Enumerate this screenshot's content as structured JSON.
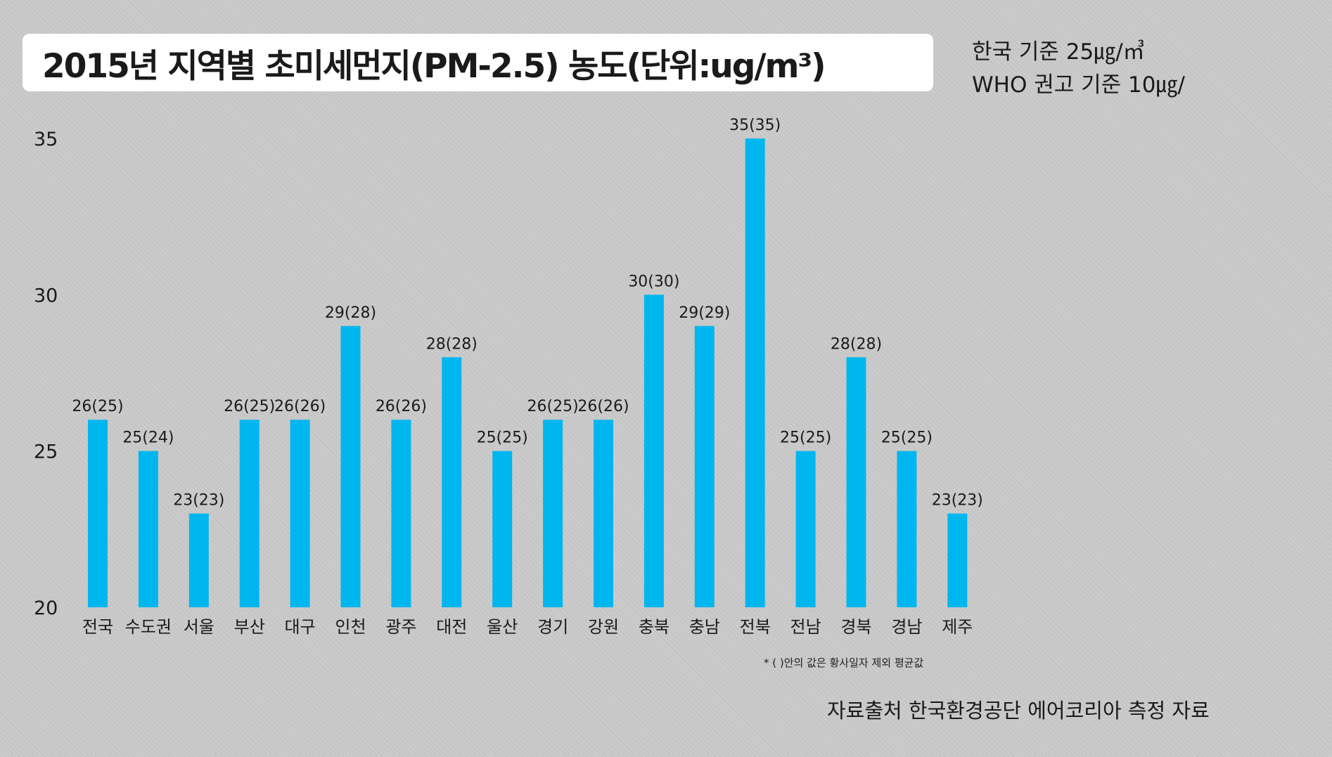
{
  "title": "2015년 지역별 초미세먼지(PM-2.5) 농도(단위:ug/m³)",
  "standards": {
    "korea": "한국 기준 25㎍/㎥",
    "who": "WHO 권고 기준 10㎍/"
  },
  "note": "* ( )안의 값은 황사일자 제외 평균값",
  "source": "자료출처 한국환경공단 에어코리아 측정 자료",
  "colors": {
    "bar": "#00b6ef",
    "text": "#1a1a1a",
    "background": "#c9c9c9"
  },
  "chart_data": {
    "type": "bar",
    "title": "2015년 지역별 초미세먼지(PM-2.5) 농도(단위:ug/m³)",
    "xlabel": "",
    "ylabel": "",
    "ylim": [
      20,
      35
    ],
    "yticks": [
      "20",
      "25",
      "30",
      "35"
    ],
    "grid": false,
    "categories": [
      "전국",
      "수도권",
      "서울",
      "부산",
      "대구",
      "인천",
      "광주",
      "대전",
      "울산",
      "경기",
      "강원",
      "충북",
      "충남",
      "전북",
      "전남",
      "경북",
      "경남",
      "제주"
    ],
    "values": [
      26,
      25,
      23,
      26,
      26,
      29,
      26,
      28,
      25,
      26,
      26,
      30,
      29,
      35,
      25,
      28,
      25,
      23
    ],
    "values_excluding_yellow_dust": [
      25,
      24,
      23,
      25,
      26,
      28,
      26,
      28,
      25,
      25,
      26,
      30,
      29,
      35,
      25,
      28,
      25,
      23
    ],
    "data_labels": [
      "26(25)",
      "25(24)",
      "23(23)",
      "26(25)",
      "26(26)",
      "29(28)",
      "26(26)",
      "28(28)",
      "25(25)",
      "26(25)",
      "26(26)",
      "30(30)",
      "29(29)",
      "35(35)",
      "25(25)",
      "28(28)",
      "25(25)",
      "23(23)"
    ]
  }
}
